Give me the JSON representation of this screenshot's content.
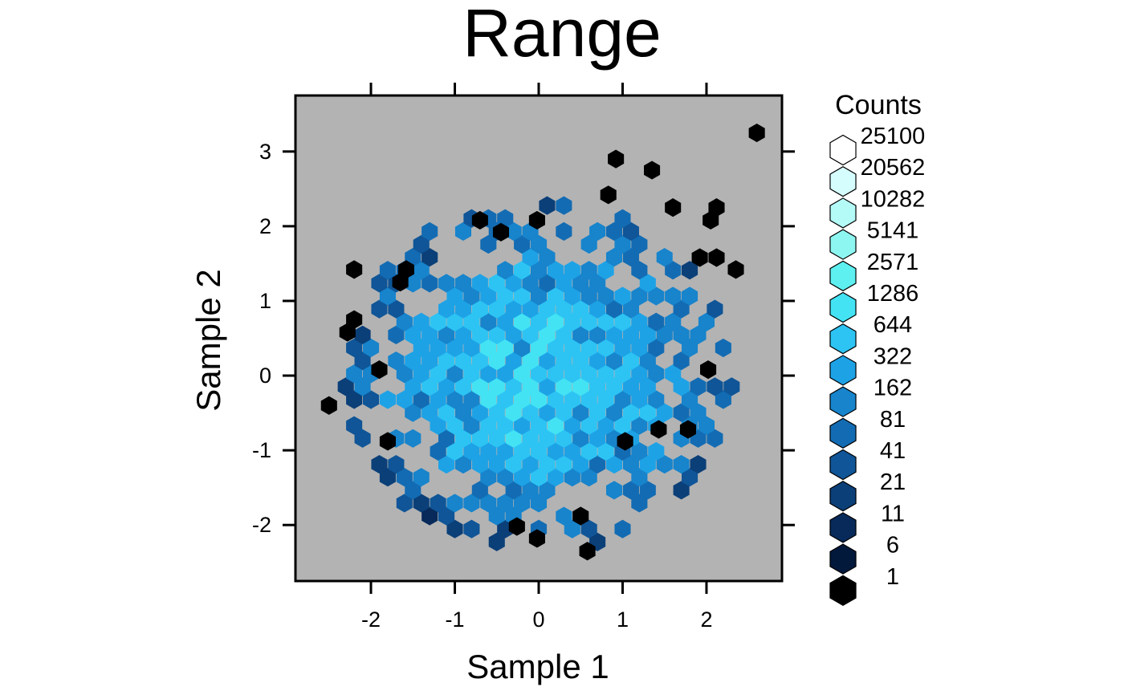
{
  "chart_data": {
    "type": "hexbin",
    "title": "Range",
    "xlabel": "Sample 1",
    "ylabel": "Sample 2",
    "xlim": [
      -2.9,
      2.9
    ],
    "ylim": [
      -2.75,
      3.75
    ],
    "x_ticks": [
      -2,
      -1,
      0,
      1,
      2
    ],
    "y_ticks": [
      -2,
      -1,
      0,
      1,
      2,
      3
    ],
    "x_tick_labels": [
      "-2",
      "-1",
      "0",
      "1",
      "2"
    ],
    "y_tick_labels": [
      "-2",
      "-1",
      "0",
      "1",
      "2",
      "3"
    ],
    "panel_background": "#b3b3b3",
    "grid": false,
    "legend": {
      "title": "Counts",
      "placement": "right",
      "breaks": [
        25100,
        20562,
        10282,
        5141,
        2571,
        1286,
        644,
        322,
        162,
        81,
        41,
        21,
        11,
        6,
        1
      ],
      "labels": [
        "25100",
        "20562",
        "10282",
        "5141",
        "2571",
        "1286",
        "644",
        "322",
        "162",
        "81",
        "41",
        "21",
        "11",
        "6",
        "1"
      ],
      "colors": [
        "#ffffff",
        "#d6fdfd",
        "#b4fbf8",
        "#8ef6f1",
        "#5ef0f0",
        "#43e3f4",
        "#2dc4f3",
        "#1ea2e6",
        "#1784cc",
        "#136cb3",
        "#0f5597",
        "#0b3f78",
        "#072a5a",
        "#03193c",
        "#000000"
      ]
    },
    "outlier_hexes": [
      {
        "x": 2.6,
        "y": 3.25,
        "count": 1
      },
      {
        "x": 0.92,
        "y": 2.9,
        "count": 1
      },
      {
        "x": 1.35,
        "y": 2.75,
        "count": 1
      },
      {
        "x": 0.83,
        "y": 2.42,
        "count": 1
      },
      {
        "x": -0.7,
        "y": 2.08,
        "count": 1
      },
      {
        "x": -0.02,
        "y": 2.08,
        "count": 1
      },
      {
        "x": -0.45,
        "y": 1.92,
        "count": 1
      },
      {
        "x": 1.6,
        "y": 2.25,
        "count": 1
      },
      {
        "x": 2.05,
        "y": 2.08,
        "count": 1
      },
      {
        "x": 2.12,
        "y": 2.25,
        "count": 1
      },
      {
        "x": 1.92,
        "y": 1.58,
        "count": 1
      },
      {
        "x": 2.12,
        "y": 1.58,
        "count": 1
      },
      {
        "x": 2.35,
        "y": 1.42,
        "count": 1
      },
      {
        "x": -2.2,
        "y": 1.42,
        "count": 1
      },
      {
        "x": -1.58,
        "y": 1.42,
        "count": 1
      },
      {
        "x": -1.65,
        "y": 1.25,
        "count": 1
      },
      {
        "x": -2.2,
        "y": 0.75,
        "count": 1
      },
      {
        "x": -2.28,
        "y": 0.58,
        "count": 1
      },
      {
        "x": -1.9,
        "y": 0.08,
        "count": 1
      },
      {
        "x": -2.5,
        "y": -0.4,
        "count": 1
      },
      {
        "x": -1.8,
        "y": -0.88,
        "count": 1
      },
      {
        "x": 2.02,
        "y": 0.08,
        "count": 1
      },
      {
        "x": 1.43,
        "y": -0.72,
        "count": 1
      },
      {
        "x": 1.78,
        "y": -0.72,
        "count": 1
      },
      {
        "x": 0.58,
        "y": -2.35,
        "count": 1
      },
      {
        "x": -0.02,
        "y": -2.18,
        "count": 1
      },
      {
        "x": 0.5,
        "y": -1.88,
        "count": 1
      },
      {
        "x": -0.26,
        "y": -2.02,
        "count": 1
      },
      {
        "x": 1.03,
        "y": -0.88,
        "count": 1
      }
    ]
  }
}
